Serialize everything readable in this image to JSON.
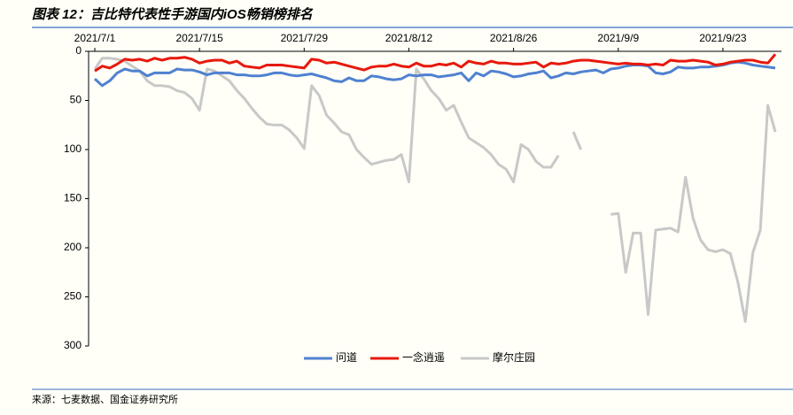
{
  "chart_data": {
    "type": "line",
    "title": "图表 12：吉比特代表性手游国内iOS畅销榜排名",
    "source": "来源：七麦数据、国金证券研究所",
    "categories": [
      "2021/7/1",
      null,
      null,
      null,
      null,
      null,
      null,
      null,
      null,
      null,
      null,
      null,
      null,
      null,
      "2021/7/15",
      null,
      null,
      null,
      null,
      null,
      null,
      null,
      null,
      null,
      null,
      null,
      null,
      null,
      "2021/7/29",
      null,
      null,
      null,
      null,
      null,
      null,
      null,
      null,
      null,
      null,
      null,
      null,
      null,
      "2021/8/12",
      null,
      null,
      null,
      null,
      null,
      null,
      null,
      null,
      null,
      null,
      null,
      null,
      null,
      "2021/8/26",
      null,
      null,
      null,
      null,
      null,
      null,
      null,
      null,
      null,
      null,
      null,
      null,
      null,
      "2021/9/9",
      null,
      null,
      null,
      null,
      null,
      null,
      null,
      null,
      null,
      null,
      null,
      null,
      null,
      "2021/9/23",
      null,
      null,
      null,
      null,
      null,
      null,
      null
    ],
    "ylim": [
      0,
      300
    ],
    "yticks": [
      0,
      50,
      100,
      150,
      200,
      250,
      300
    ],
    "y_inverted": true,
    "x_axis_position": "top",
    "grid": false,
    "legend": "bottom",
    "series": [
      {
        "name": "问道",
        "color": "#4f81d0",
        "values": [
          28,
          35,
          30,
          22,
          18,
          20,
          20,
          25,
          22,
          22,
          22,
          18,
          19,
          19,
          21,
          24,
          22,
          22,
          22,
          24,
          24,
          25,
          25,
          24,
          22,
          22,
          24,
          25,
          24,
          23,
          25,
          27,
          30,
          31,
          27,
          30,
          30,
          25,
          26,
          28,
          29,
          28,
          24,
          25,
          24,
          24,
          26,
          25,
          24,
          22,
          30,
          22,
          25,
          20,
          21,
          23,
          26,
          25,
          23,
          22,
          20,
          27,
          25,
          22,
          23,
          21,
          20,
          19,
          22,
          18,
          17,
          15,
          14,
          14,
          15,
          22,
          23,
          21,
          16,
          17,
          17,
          16,
          16,
          15,
          14,
          12,
          11,
          12,
          14,
          15,
          16,
          17
        ]
      },
      {
        "name": "一念逍遥",
        "color": "#e8180c",
        "values": [
          20,
          15,
          17,
          13,
          8,
          9,
          8,
          10,
          7,
          9,
          7,
          7,
          6,
          8,
          12,
          10,
          9,
          9,
          12,
          10,
          15,
          16,
          17,
          14,
          14,
          14,
          15,
          16,
          17,
          8,
          9,
          12,
          11,
          13,
          15,
          17,
          19,
          16,
          15,
          15,
          13,
          15,
          16,
          12,
          15,
          15,
          13,
          14,
          12,
          16,
          10,
          12,
          13,
          10,
          12,
          12,
          13,
          13,
          12,
          11,
          16,
          12,
          13,
          12,
          10,
          9,
          9,
          10,
          11,
          12,
          13,
          12,
          13,
          13,
          14,
          13,
          14,
          9,
          10,
          10,
          9,
          10,
          11,
          14,
          13,
          11,
          10,
          9,
          9,
          11,
          12,
          3
        ]
      },
      {
        "name": "摩尔庄园",
        "color": "#c8c8c8",
        "values": [
          18,
          7,
          7,
          8,
          10,
          15,
          20,
          30,
          35,
          35,
          36,
          40,
          42,
          48,
          60,
          18,
          20,
          25,
          30,
          40,
          48,
          58,
          67,
          74,
          75,
          75,
          80,
          88,
          99,
          35,
          45,
          65,
          73,
          82,
          85,
          100,
          108,
          115,
          113,
          111,
          110,
          105,
          133,
          18,
          28,
          40,
          48,
          60,
          55,
          72,
          88,
          93,
          98,
          105,
          115,
          120,
          133,
          95,
          100,
          112,
          118,
          118,
          106,
          null,
          82,
          100,
          null,
          null,
          null,
          166,
          165,
          225,
          185,
          185,
          268,
          182,
          181,
          180,
          184,
          128,
          170,
          192,
          202,
          204,
          202,
          206,
          235,
          275,
          205,
          182,
          55,
          82
        ]
      }
    ]
  }
}
